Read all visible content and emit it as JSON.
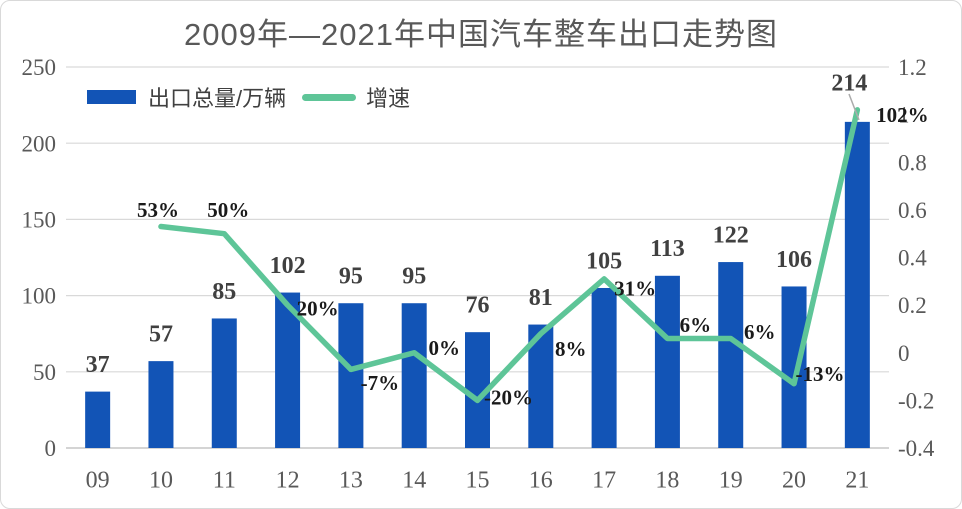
{
  "title": "2009年—2021年中国汽车整车出口走势图",
  "legend": {
    "bar_label": "出口总量/万辆",
    "line_label": "增速"
  },
  "colors": {
    "bar": "#1254B6",
    "line": "#5EC598",
    "grid": "#D9D9D9",
    "baseline": "#C6C6C6",
    "axis_text": "#595959",
    "bar_label_text": "#404040",
    "pct_label_text": "#1A1A1A",
    "leader": "#ABABAB",
    "title_text": "#595959",
    "border": "#D9D9D9",
    "background": "#FFFFFF"
  },
  "chart_data": {
    "type": "bar+line",
    "title": "2009年—2021年中国汽车整车出口走势图",
    "categories": [
      "09",
      "10",
      "11",
      "12",
      "13",
      "14",
      "15",
      "16",
      "17",
      "18",
      "19",
      "20",
      "21"
    ],
    "series": [
      {
        "name": "出口总量/万辆",
        "type": "bar",
        "axis": "left",
        "values": [
          37,
          57,
          85,
          102,
          95,
          95,
          76,
          81,
          105,
          113,
          122,
          106,
          214
        ],
        "data_labels": [
          "37",
          "57",
          "85",
          "102",
          "95",
          "95",
          "76",
          "81",
          "105",
          "113",
          "122",
          "106",
          "214"
        ]
      },
      {
        "name": "增速",
        "type": "line",
        "axis": "right",
        "start_index": 1,
        "values": [
          0.53,
          0.5,
          0.2,
          -0.07,
          0.0,
          -0.2,
          0.08,
          0.31,
          0.06,
          0.06,
          -0.13,
          1.02
        ],
        "data_labels": [
          "53%",
          "50%",
          "20%",
          "-7%",
          "0%",
          "-20%",
          "8%",
          "31%",
          "6%",
          "6%",
          "-13%",
          "102%"
        ]
      }
    ],
    "left_axis": {
      "ticks": [
        "0",
        "50",
        "100",
        "150",
        "200",
        "250"
      ],
      "range": [
        0,
        250
      ]
    },
    "right_axis": {
      "ticks": [
        "-0.4",
        "-0.2",
        "0",
        "0.2",
        "0.4",
        "0.6",
        "0.8",
        "1",
        "1.2"
      ],
      "range": [
        -0.4,
        1.2
      ]
    },
    "grid": true,
    "legend_position": "top-left"
  }
}
